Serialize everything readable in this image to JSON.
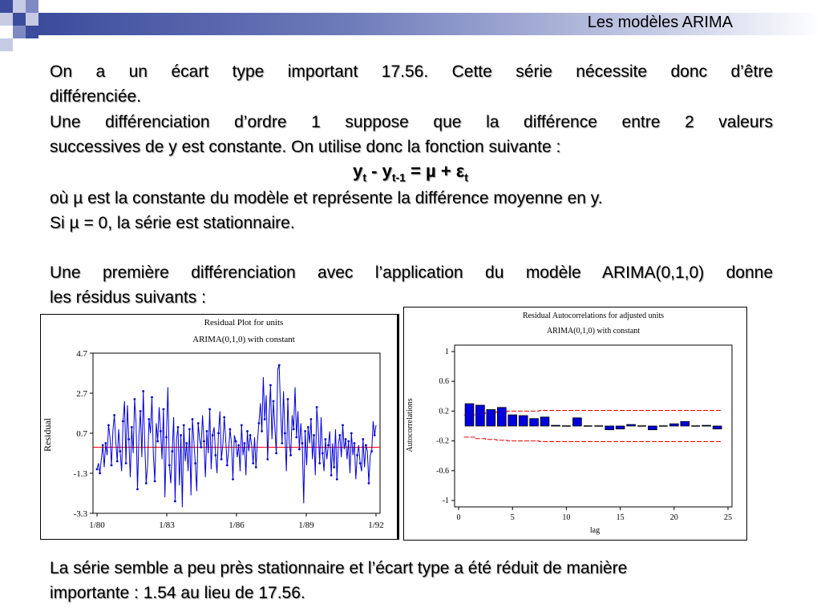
{
  "slide": {
    "title": "Les modèles ARIMA",
    "text": {
      "p1_line1": "On a un écart type important 17.56. Cette série nécessite donc d’être",
      "p1_line2": "différenciée.",
      "p2_line1": "Une différenciation d’ordre 1 suppose que la différence entre 2 valeurs",
      "p2_line2": "successives de y est constante. On utilise donc la fonction suivante :",
      "formula_y1": "y",
      "formula_sub1": "t",
      "formula_mid": " - y",
      "formula_sub2": "t-1",
      "formula_eq": " = µ + ε",
      "formula_sub3": "t",
      "p3": "où µ est la constante du modèle et représente la différence moyenne en y.",
      "p4": "Si µ = 0, la série est stationnaire.",
      "p5_line1": "Une première différenciation avec l’application du modèle ARIMA(0,1,0) donne",
      "p5_line2": "les résidus suivants :",
      "p6_line1": "La série semble a peu près stationnaire et l’écart type a été réduit de manière",
      "p6_line2": "importante : 1.54 au lieu de 17.56."
    }
  },
  "chart_data": [
    {
      "type": "line",
      "title": "Residual Plot for units",
      "subtitle": "ARIMA(0,1,0) with constant",
      "ylabel": "Residual",
      "xlabel": "",
      "x_ticks": [
        "1/80",
        "1/83",
        "1/86",
        "1/89",
        "1/92"
      ],
      "y_ticks": [
        "4.7",
        "2.7",
        "0.7",
        "-1.3",
        "-3.3"
      ],
      "ylim": [
        -3.3,
        4.7
      ],
      "reference_line": 0,
      "colors": {
        "series": "#0000dd",
        "reference": "#ff0000"
      },
      "series": [
        {
          "values": [
            -1.1,
            -0.8,
            -1.3,
            -0.6,
            0.1,
            -1.0,
            0.2,
            -0.4,
            1.1,
            0.5,
            -0.9,
            0.8,
            1.6,
            0.3,
            -0.7,
            0.9,
            -0.2,
            -1.2,
            1.3,
            2.3,
            -0.8,
            2.1,
            0.4,
            -1.5,
            1.0,
            -0.3,
            2.4,
            1.2,
            -2.1,
            0.6,
            1.8,
            -0.5,
            2.8,
            0.2,
            -1.8,
            -0.9,
            1.4,
            0.7,
            2.5,
            -0.4,
            -1.7,
            1.2,
            0.3,
            2.0,
            0.8,
            -0.6,
            1.9,
            -2.5,
            0.5,
            3.0,
            -0.9,
            -1.8,
            -0.2,
            1.5,
            -2.7,
            0.4,
            1.0,
            -1.9,
            0.6,
            -3.0,
            1.1,
            -0.7,
            0.2,
            -1.2,
            0.9,
            -2.4,
            1.4,
            0.3,
            -0.8,
            -2.2,
            1.2,
            0.4,
            0.0,
            1.6,
            0.3,
            -1.5,
            0.8,
            -0.3,
            1.9,
            -1.1,
            0.6,
            1.0,
            -0.4,
            -1.3,
            0.7,
            1.8,
            -0.6,
            0.1,
            1.5,
            0.4,
            -0.9,
            -0.2,
            0.9,
            0.2,
            -1.6,
            0.6,
            0.3,
            -0.5,
            0.1,
            -1.2,
            1.1,
            -0.4,
            0.2,
            -1.4,
            0.8,
            -0.2,
            0.6,
            0.1,
            -0.8,
            0.5,
            -1.0,
            0.3,
            1.2,
            2.2,
            0.8,
            3.5,
            1.4,
            2.6,
            -0.6,
            1.5,
            3.1,
            0.4,
            2.3,
            1.0,
            -0.3,
            3.9,
            4.1,
            1.8,
            0.2,
            2.8,
            0.7,
            -1.2,
            2.4,
            0.2,
            -0.4,
            1.6,
            0.9,
            3.0,
            0.5,
            1.8,
            -0.1,
            1.2,
            0.2,
            -2.8,
            0.8,
            -0.9,
            1.0,
            0.2,
            1.4,
            -0.6,
            0.6,
            -1.4,
            2.0,
            0.9,
            -0.8,
            1.5,
            -0.3,
            -1.2,
            0.4,
            -0.6,
            0.1,
            0.8,
            -1.4,
            0.2,
            -1.0,
            0.9,
            -1.6,
            0.2,
            0.6,
            -0.5,
            1.1,
            -0.1,
            0.4,
            -0.6,
            0.3,
            -1.3,
            0.7,
            -0.4,
            0.2,
            -1.6,
            -0.4,
            0.1,
            -0.8,
            -1.2,
            0.4,
            -1.0,
            0.1,
            -0.2,
            -1.8,
            -0.4,
            -0.2,
            1.3,
            0.6,
            1.1
          ]
        }
      ]
    },
    {
      "type": "bar",
      "title": "Residual Autocorrelations for adjusted units",
      "subtitle": "ARIMA(0,1,0) with constant",
      "xlabel": "lag",
      "ylabel": "Autocorrelations",
      "x_ticks": [
        "0",
        "5",
        "10",
        "15",
        "20",
        "25"
      ],
      "y_ticks": [
        "1",
        "0.6",
        "0.2",
        "-0.2",
        "-0.6",
        "-1"
      ],
      "xlim": [
        0,
        25
      ],
      "ylim": [
        -1,
        1
      ],
      "colors": {
        "bars": "#0000dd",
        "bands": "#ff0000"
      },
      "lags": [
        1,
        2,
        3,
        4,
        5,
        6,
        7,
        8,
        9,
        10,
        11,
        12,
        13,
        14,
        15,
        16,
        17,
        18,
        19,
        20,
        21,
        22,
        23,
        24
      ],
      "values": [
        0.3,
        0.28,
        0.22,
        0.25,
        0.15,
        0.14,
        0.1,
        0.12,
        0.01,
        0.0,
        0.11,
        0.0,
        0.0,
        -0.05,
        -0.04,
        0.02,
        0.0,
        -0.05,
        0.0,
        0.03,
        0.06,
        0.0,
        0.01,
        -0.04
      ],
      "upper_band": [
        0.15,
        0.17,
        0.18,
        0.19,
        0.2,
        0.2,
        0.2,
        0.21,
        0.21,
        0.21,
        0.21,
        0.21,
        0.21,
        0.21,
        0.21,
        0.21,
        0.21,
        0.21,
        0.21,
        0.21,
        0.21,
        0.21,
        0.21,
        0.21
      ],
      "lower_band": [
        -0.15,
        -0.17,
        -0.18,
        -0.19,
        -0.2,
        -0.2,
        -0.2,
        -0.21,
        -0.21,
        -0.21,
        -0.21,
        -0.21,
        -0.21,
        -0.21,
        -0.21,
        -0.21,
        -0.21,
        -0.21,
        -0.21,
        -0.21,
        -0.21,
        -0.21,
        -0.21,
        -0.21
      ]
    }
  ]
}
